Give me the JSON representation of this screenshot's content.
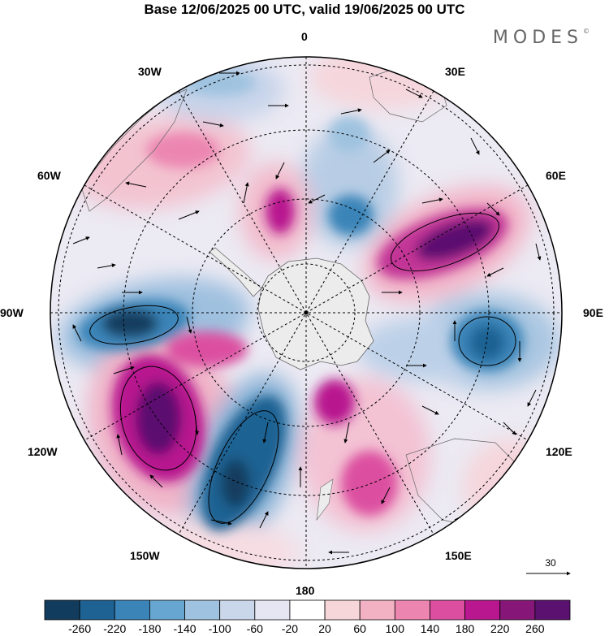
{
  "title": "Base 12/06/2025 00 UTC, valid 19/06/2025 00 UTC",
  "brand": "MODES",
  "brand_mark": "©",
  "longitude_labels": {
    "top": "0",
    "top_left": "30W",
    "top_right": "30E",
    "upper_left": "60W",
    "upper_right": "60E",
    "left": "90W",
    "right": "90E",
    "lower_left": "120W",
    "lower_right": "120E",
    "bottom_left": "150W",
    "bottom_right": "150E",
    "bottom": "180"
  },
  "wind_reference": {
    "value": "30"
  },
  "colorbar": {
    "labels": [
      "-260",
      "-220",
      "-180",
      "-140",
      "-100",
      "-60",
      "-20",
      "20",
      "60",
      "100",
      "140",
      "180",
      "220",
      "260"
    ],
    "colors": [
      "#123c5e",
      "#1d6293",
      "#3a84b8",
      "#67a6d1",
      "#9ec2df",
      "#cad6ea",
      "#e6e6f2",
      "#ffffff",
      "#f7d6d9",
      "#f3b2c4",
      "#ec86b1",
      "#dc4fa0",
      "#b8178f",
      "#861779",
      "#5b1170"
    ]
  },
  "map": {
    "projection": "south-polar-stereographic",
    "features": [
      "anomaly-shading",
      "wind-vectors",
      "coastlines",
      "graticule"
    ],
    "anomalies": [
      {
        "sign": "positive",
        "level": 260,
        "region": "60E-80E"
      },
      {
        "sign": "negative",
        "level": -220,
        "region": "90E-100E"
      },
      {
        "sign": "positive",
        "level": 260,
        "region": "110W-125W"
      },
      {
        "sign": "negative",
        "level": -260,
        "region": "140W-160W"
      },
      {
        "sign": "negative",
        "level": -220,
        "region": "85W-95W"
      },
      {
        "sign": "positive",
        "level": 180,
        "region": "160E-170E"
      },
      {
        "sign": "positive",
        "level": 180,
        "region": "15W"
      },
      {
        "sign": "negative",
        "level": -180,
        "region": "20E"
      },
      {
        "sign": "positive",
        "level": 140,
        "region": "45W"
      }
    ]
  }
}
